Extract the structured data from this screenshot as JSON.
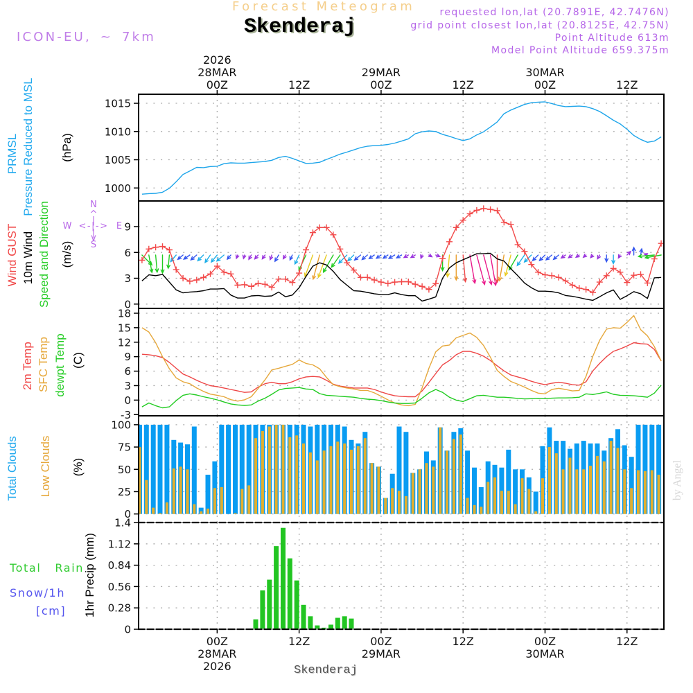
{
  "header": {
    "title": "Forecast Meteogram",
    "location": "Skenderaj",
    "model": "ICON-EU, ~ 7km",
    "requested": "requested lon,lat (20.7891E, 42.7476N)",
    "grid_point": "grid point closest lon,lat (20.8125E, 42.75N)",
    "point_altitude": "Point Altitude 613m",
    "model_altitude": "Model Point Altitude 659.375m"
  },
  "footer": {
    "location": "Skenderaj",
    "watermark": "by Angel"
  },
  "panel_labels": {
    "pressure": {
      "line1": "PRMSL",
      "line2": "Pressure Reduced to MSL",
      "unit": "(hPa)"
    },
    "wind": {
      "gust": "Wind GUST",
      "wind10m": "10m Wind",
      "speed_dir": "Speed and Direction",
      "unit": "(m/s)",
      "compass": {
        "n": "N",
        "s": "S",
        "e": "E",
        "w": "W",
        "h_axis": "<-|->",
        "up": "^",
        "down": "v",
        "stem": "|"
      }
    },
    "temp": {
      "t2m": "2m Temp",
      "sfc": "SFC Temp",
      "dewpt": "dewpt Temp",
      "unit": "(C)"
    },
    "clouds": {
      "total": "Total Clouds",
      "low": "Low Clouds",
      "unit": "(%)"
    },
    "precip": {
      "rain": "Total   Rain",
      "snow": "Snow/1h",
      "snow_unit": "[cm]",
      "axis": "1hr Precip (mm)"
    }
  },
  "time_axis": {
    "reference": "00Z 28MAR 2026 = hour 0",
    "step_hours": 1,
    "xlim_hours": [
      -11.5,
      65.4
    ],
    "ticks": [
      {
        "h": 0,
        "time": "00Z",
        "date": "28MAR",
        "year": "2026"
      },
      {
        "h": 12,
        "time": "12Z"
      },
      {
        "h": 24,
        "time": "00Z",
        "date": "29MAR"
      },
      {
        "h": 36,
        "time": "12Z"
      },
      {
        "h": 48,
        "time": "00Z",
        "date": "30MAR"
      },
      {
        "h": 60,
        "time": "12Z"
      }
    ]
  },
  "wind_speed_colors": [
    {
      "max_ms": 1.0,
      "color": "#9933dd"
    },
    {
      "max_ms": 1.5,
      "color": "#3355ee"
    },
    {
      "max_ms": 2.5,
      "color": "#1eaee8"
    },
    {
      "max_ms": 4.0,
      "color": "#22cc22"
    },
    {
      "max_ms": 4.6,
      "color": "#e8cc22"
    },
    {
      "max_ms": 5.0,
      "color": "#eaa030"
    },
    {
      "max_ms": 5.3,
      "color": "#f04848"
    },
    {
      "max_ms": 99,
      "color": "#ea1a8a"
    }
  ],
  "chart_data": [
    {
      "id": "pressure",
      "type": "line",
      "title": "PRMSL Pressure Reduced to MSL",
      "xlabel": "",
      "ylabel": "(hPa)",
      "ylim": [
        997.7,
        1016.6
      ],
      "yticks": [
        1000,
        1005,
        1010,
        1015
      ],
      "grid": true,
      "series": [
        {
          "key": "prmsl",
          "name": "PRMSL",
          "color": "#1ea5ea",
          "start_hour": -11,
          "values": [
            998.9,
            999.0,
            999.05,
            999.25,
            999.95,
            1001.1,
            1002.4,
            1003.0,
            1003.65,
            1003.6,
            1003.8,
            1003.85,
            1004.3,
            1004.45,
            1004.4,
            1004.4,
            1004.5,
            1004.6,
            1004.7,
            1004.9,
            1005.4,
            1005.6,
            1005.25,
            1004.8,
            1004.35,
            1004.4,
            1004.55,
            1005.05,
            1005.5,
            1006.0,
            1006.35,
            1006.75,
            1007.15,
            1007.4,
            1007.5,
            1007.55,
            1007.7,
            1007.95,
            1008.3,
            1008.7,
            1009.6,
            1009.95,
            1010.1,
            1010.0,
            1009.5,
            1009.15,
            1008.75,
            1008.4,
            1008.7,
            1009.4,
            1009.95,
            1010.8,
            1011.7,
            1013.15,
            1013.8,
            1014.3,
            1014.8,
            1015.1,
            1015.2,
            1015.25,
            1014.95,
            1014.6,
            1014.4,
            1014.45,
            1014.5,
            1014.4,
            1014.05,
            1013.55,
            1012.8,
            1012.0,
            1011.35,
            1010.4,
            1009.3,
            1008.6,
            1008.1,
            1008.3,
            1009.05
          ]
        }
      ]
    },
    {
      "id": "wind",
      "type": "line",
      "title": "Wind GUST / 10m Wind Speed and Direction",
      "xlabel": "",
      "ylabel": "(m/s)",
      "ylim": [
        -0.5,
        11.9
      ],
      "yticks": [
        0,
        3,
        6,
        9
      ],
      "grid": true,
      "series": [
        {
          "key": "gust",
          "name": "Wind GUST",
          "color": "#f24a4a",
          "marker": "+",
          "start_hour": -11,
          "values": [
            5.1,
            6.4,
            6.6,
            6.7,
            6.3,
            4.0,
            3.0,
            2.65,
            2.8,
            3.1,
            3.5,
            4.4,
            3.7,
            3.5,
            2.2,
            2.25,
            2.05,
            2.4,
            2.3,
            1.95,
            2.9,
            2.9,
            2.5,
            3.6,
            6.3,
            8.3,
            8.9,
            8.9,
            8.05,
            6.4,
            4.8,
            3.95,
            3.1,
            3.1,
            2.8,
            2.55,
            2.4,
            2.55,
            2.6,
            2.6,
            2.3,
            2.05,
            1.7,
            2.4,
            5.3,
            7.25,
            8.9,
            9.75,
            10.5,
            10.9,
            11.1,
            11.0,
            10.85,
            9.5,
            9.25,
            6.9,
            6.1,
            4.6,
            3.7,
            3.4,
            3.3,
            3.1,
            2.7,
            2.2,
            1.85,
            1.7,
            1.35,
            2.55,
            3.3,
            4.15,
            3.7,
            2.5,
            3.35,
            3.45,
            2.45,
            5.25,
            7.05
          ]
        },
        {
          "key": "wind_10m",
          "name": "10m Wind",
          "color": "#000000",
          "start_hour": -11,
          "values": [
            2.7,
            3.4,
            3.3,
            3.45,
            2.55,
            1.65,
            1.3,
            1.4,
            1.45,
            1.55,
            1.75,
            1.75,
            1.8,
            1.05,
            0.7,
            0.7,
            0.95,
            1.0,
            0.9,
            0.95,
            1.4,
            0.85,
            1.05,
            1.9,
            3.2,
            4.4,
            4.8,
            4.55,
            3.8,
            2.85,
            2.2,
            1.55,
            1.5,
            1.35,
            1.2,
            1.1,
            1.1,
            1.3,
            1.1,
            0.97,
            0.97,
            0.35,
            0.57,
            0.84,
            3.0,
            4.2,
            4.8,
            5.15,
            5.5,
            5.85,
            5.85,
            5.9,
            5.25,
            5.0,
            4.1,
            3.3,
            2.45,
            1.9,
            1.5,
            1.5,
            1.45,
            1.3,
            1.0,
            0.9,
            0.75,
            0.57,
            0.43,
            0.85,
            1.3,
            1.65,
            0.55,
            0.97,
            1.45,
            1.2,
            0.65,
            3.05,
            3.1
          ]
        }
      ],
      "wind_direction_deg": [
        315,
        350,
        355,
        0,
        5,
        40,
        50,
        55,
        50,
        45,
        35,
        40,
        50,
        40,
        20,
        15,
        30,
        40,
        35,
        20,
        30,
        30,
        25,
        25,
        25,
        20,
        15,
        20,
        30,
        35,
        45,
        45,
        50,
        50,
        55,
        55,
        55,
        60,
        60,
        60,
        60,
        20,
        300,
        290,
        0,
        5,
        0,
        355,
        350,
        345,
        345,
        350,
        0,
        10,
        15,
        30,
        35,
        45,
        45,
        45,
        50,
        50,
        55,
        55,
        55,
        50,
        40,
        30,
        0,
        0,
        30,
        225,
        180,
        190,
        110,
        85,
        80
      ]
    },
    {
      "id": "temp",
      "type": "line",
      "title": "2m Temp / SFC Temp / dewpt Temp",
      "xlabel": "",
      "ylabel": "(C)",
      "ylim": [
        -3.25,
        19.0
      ],
      "yticks": [
        -3,
        0,
        3,
        6,
        9,
        12,
        15,
        18
      ],
      "grid": true,
      "series": [
        {
          "key": "t2m",
          "name": "2m Temp",
          "color": "#ee4646",
          "start_hour": -11,
          "values": [
            9.5,
            9.4,
            9.2,
            8.8,
            7.8,
            6.6,
            5.4,
            4.8,
            4.1,
            3.5,
            3.0,
            2.8,
            2.5,
            2.2,
            1.9,
            1.6,
            1.7,
            2.7,
            3.4,
            3.7,
            3.4,
            3.4,
            3.8,
            4.4,
            4.8,
            4.9,
            4.8,
            4.1,
            3.3,
            2.9,
            2.7,
            2.5,
            2.5,
            2.5,
            2.2,
            1.7,
            1.25,
            0.9,
            0.75,
            0.7,
            0.7,
            1.9,
            3.65,
            5.5,
            7.3,
            8.2,
            9.4,
            10.1,
            10.1,
            9.7,
            9.1,
            8.2,
            7.1,
            6.05,
            5.2,
            4.8,
            4.4,
            3.9,
            3.5,
            3.2,
            3.5,
            3.7,
            3.5,
            3.2,
            3.1,
            3.8,
            6.05,
            7.6,
            9.0,
            10.1,
            10.6,
            11.2,
            11.9,
            11.7,
            11.6,
            10.5,
            8.1
          ]
        },
        {
          "key": "sfc",
          "name": "SFC Temp",
          "color": "#e6a83c",
          "start_hour": -11,
          "values": [
            15.0,
            14.1,
            11.9,
            9.0,
            6.5,
            4.6,
            3.8,
            3.4,
            2.5,
            1.8,
            1.25,
            1.0,
            0.7,
            0.1,
            -0.2,
            0.05,
            0.7,
            2.4,
            4.2,
            6.25,
            6.6,
            7.0,
            7.4,
            8.3,
            7.6,
            7.3,
            6.5,
            4.7,
            3.2,
            2.8,
            2.5,
            2.3,
            2.0,
            2.0,
            1.5,
            0.8,
            0.05,
            -0.6,
            -1.0,
            -1.15,
            -0.9,
            2.5,
            6.6,
            10.0,
            11.2,
            11.4,
            12.9,
            13.4,
            13.9,
            13.0,
            11.3,
            8.9,
            6.15,
            4.9,
            3.85,
            3.3,
            2.7,
            2.0,
            1.45,
            1.3,
            2.2,
            2.45,
            2.2,
            1.9,
            2.0,
            4.9,
            9.1,
            12.4,
            14.7,
            15.0,
            14.9,
            16.1,
            17.5,
            14.6,
            13.3,
            11.1,
            8.1
          ]
        },
        {
          "key": "dewpt",
          "name": "dewpt Temp",
          "color": "#22cc22",
          "start_hour": -11,
          "values": [
            -1.4,
            -0.6,
            -1.15,
            -1.6,
            -1.4,
            -0.1,
            1.0,
            1.3,
            1.05,
            0.7,
            0.4,
            0.05,
            -0.4,
            -0.8,
            -1.0,
            -1.1,
            -1.0,
            -0.2,
            0.4,
            1.2,
            2.1,
            2.4,
            2.5,
            2.6,
            2.3,
            2.2,
            1.35,
            1.0,
            0.9,
            0.8,
            0.7,
            0.6,
            0.35,
            0.2,
            0.1,
            -0.1,
            -0.4,
            -0.6,
            -0.7,
            -0.7,
            -0.6,
            0.4,
            1.5,
            2.2,
            1.6,
            0.6,
            0.0,
            -0.3,
            0.3,
            0.9,
            1.0,
            0.8,
            0.6,
            0.6,
            0.5,
            0.35,
            0.25,
            0.3,
            0.35,
            0.3,
            0.4,
            0.45,
            0.45,
            0.5,
            0.6,
            1.3,
            1.15,
            1.4,
            1.7,
            1.2,
            1.0,
            0.95,
            0.9,
            0.77,
            0.6,
            1.45,
            3.1
          ]
        }
      ]
    },
    {
      "id": "clouds",
      "type": "bar",
      "title": "Total Clouds / Low Clouds",
      "xlabel": "",
      "ylabel": "(%)",
      "ylim": [
        -9.6,
        110
      ],
      "yticks": [
        0,
        25,
        50,
        75,
        100
      ],
      "grid": true,
      "series": [
        {
          "key": "total_clouds",
          "name": "Total Clouds",
          "color": "#099cf2",
          "start_hour": -11,
          "values": [
            100,
            100,
            100,
            100,
            100,
            83,
            80,
            78,
            98,
            7,
            44,
            59,
            100,
            100,
            100,
            100,
            100,
            100,
            100,
            100,
            100,
            100,
            100,
            100,
            100,
            98,
            100,
            100,
            100,
            100,
            98,
            83,
            79,
            92,
            57,
            53,
            18,
            45,
            98,
            92,
            46,
            50,
            70,
            60,
            97,
            71,
            92,
            96,
            71,
            52,
            30,
            59,
            55,
            52,
            72,
            50,
            50,
            41,
            25,
            76,
            97,
            82,
            82,
            73,
            79,
            82,
            79,
            79,
            71,
            85,
            95,
            77,
            64,
            100,
            100,
            100,
            100
          ]
        },
        {
          "key": "low_clouds",
          "name": "Low Clouds",
          "color": "#e3af2e",
          "start_hour": -11,
          "values": [
            75,
            38,
            7,
            1,
            13,
            51,
            53,
            50,
            11,
            3,
            6,
            29,
            30,
            0,
            1,
            28,
            32,
            85,
            93,
            98,
            100,
            100,
            86,
            88,
            79,
            69,
            60,
            71,
            76,
            81,
            79,
            72,
            76,
            85,
            57,
            53,
            18,
            29,
            26,
            20,
            46,
            50,
            57,
            53,
            97,
            71,
            84,
            89,
            18,
            10,
            8,
            36,
            41,
            26,
            26,
            11,
            40,
            28,
            3,
            40,
            75,
            68,
            50,
            63,
            50,
            50,
            54,
            65,
            59,
            82,
            74,
            50,
            29,
            49,
            48,
            49,
            44
          ]
        }
      ]
    },
    {
      "id": "precip",
      "type": "bar",
      "title": "1hr Precip",
      "xlabel": "",
      "ylabel": "1hr Precip (mm)",
      "ylim": [
        0,
        1.4
      ],
      "yticks": [
        0,
        0.28,
        0.56,
        0.84,
        1.12,
        1.4
      ],
      "grid": true,
      "series": [
        {
          "key": "rain",
          "name": "Total Rain",
          "color": "#22c522",
          "start_hour": 6,
          "values": [
            0.13,
            0.51,
            0.65,
            1.09,
            1.33,
            0.93,
            0.64,
            0.32,
            0.17,
            0.05,
            0.02,
            0.06,
            0.15,
            0.17,
            0.14,
            0.01
          ]
        },
        {
          "key": "snow",
          "name": "Snow/1h [cm]",
          "color": "#5555ee",
          "start_hour": 6,
          "values": []
        }
      ]
    }
  ]
}
